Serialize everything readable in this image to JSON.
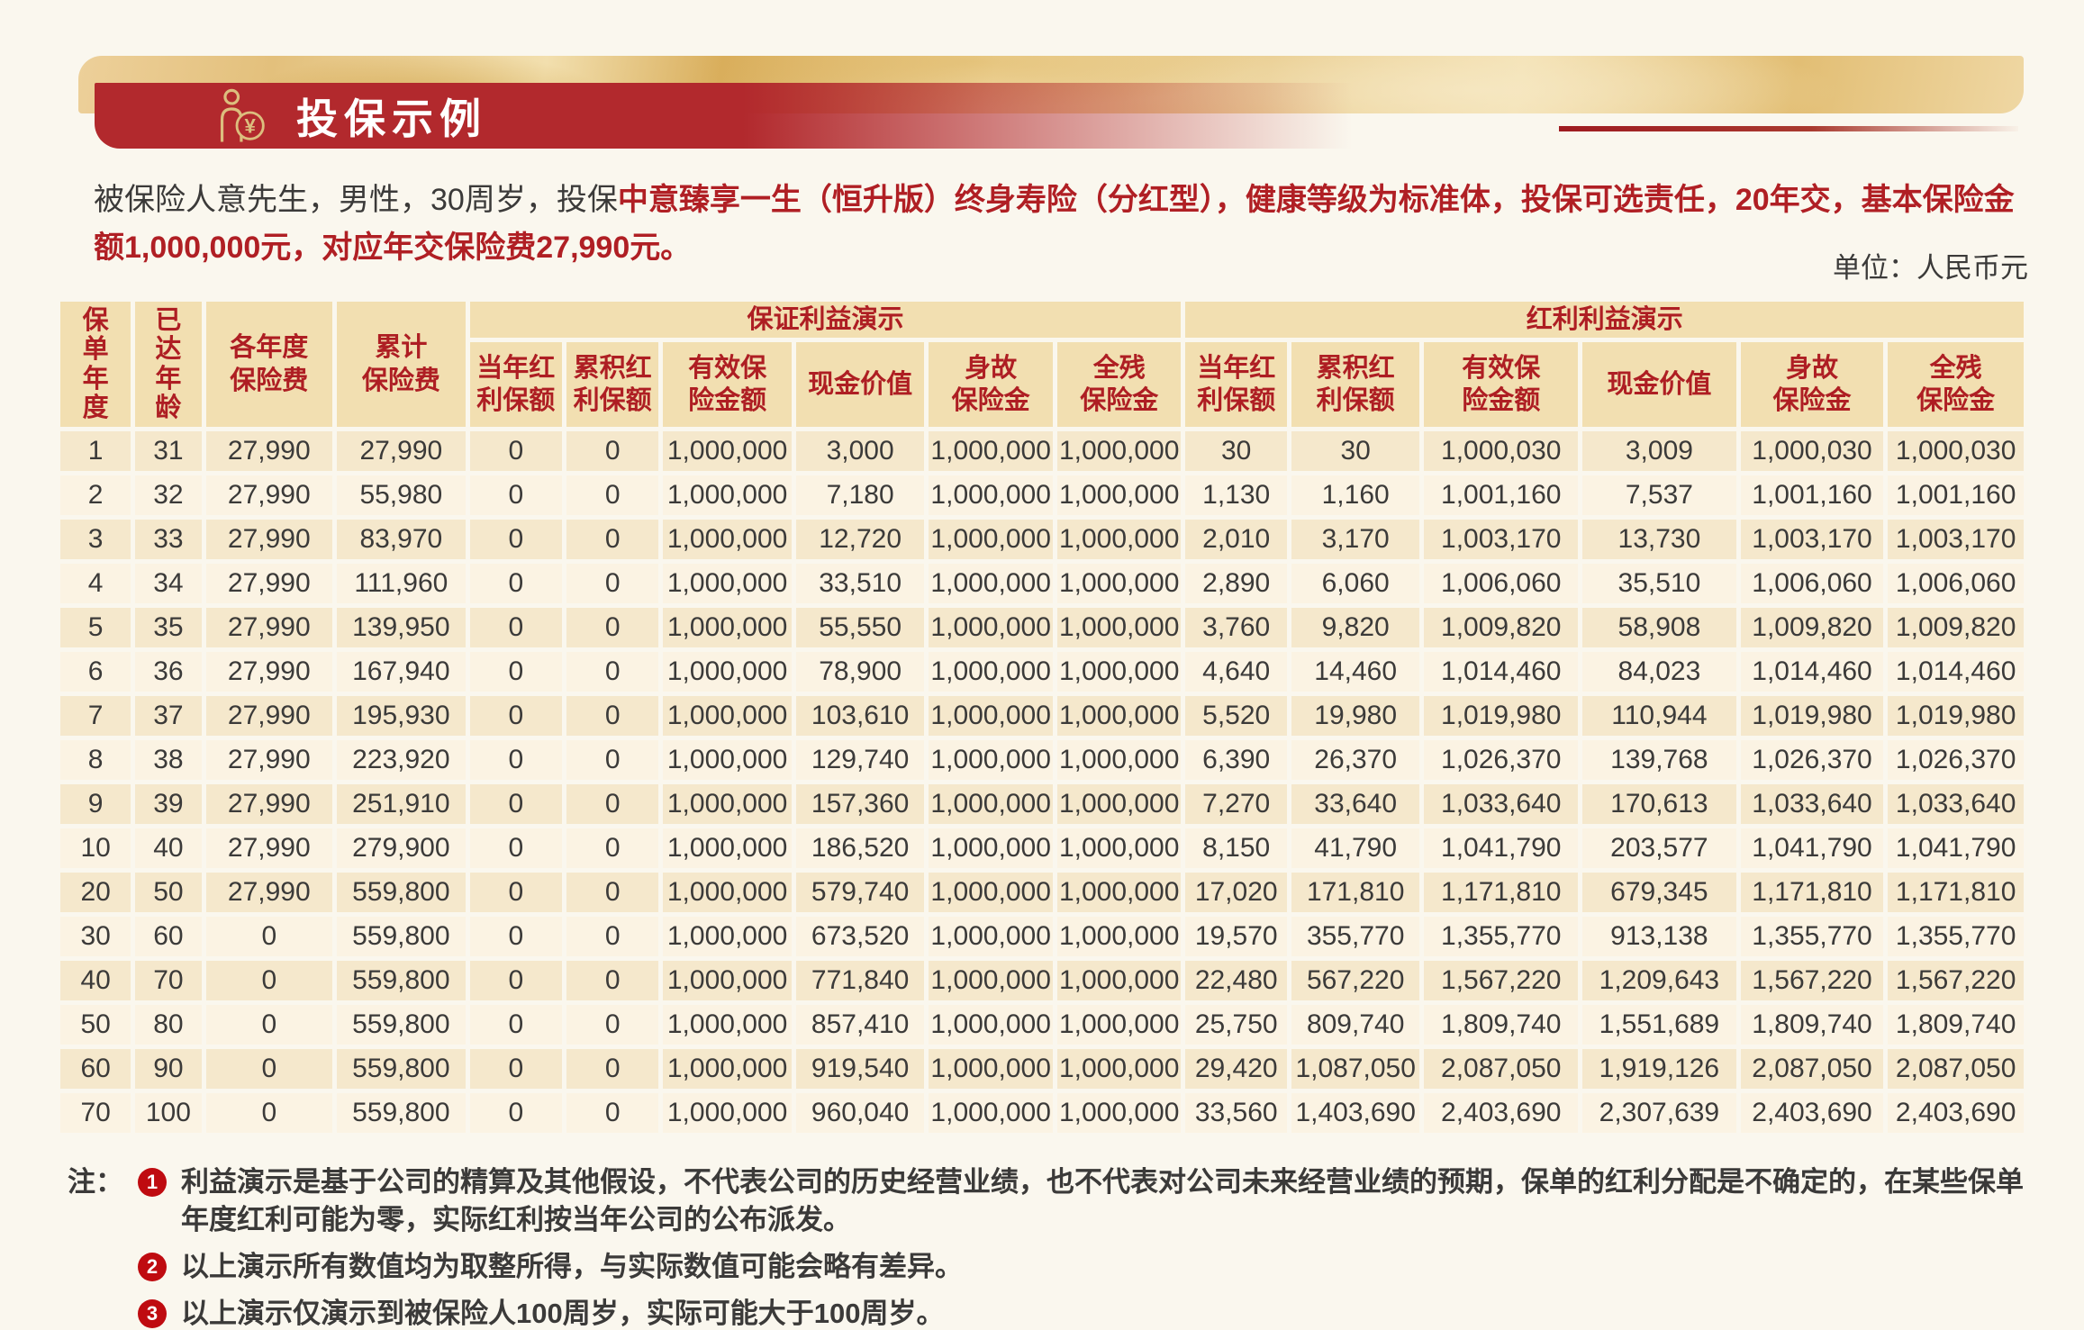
{
  "header": {
    "title": "投保示例"
  },
  "intro": {
    "normal": "被保险人意先生，男性，30周岁，投保",
    "highlight": "中意臻享一生（恒升版）终身寿险（分红型），健康等级为标准体，投保可选责任，20年交，基本保险金额1,000,000元，对应年交保险费27,990元。"
  },
  "unit_label": "单位：人民币元",
  "colors": {
    "accent_red": "#B01F24",
    "banner_red": "#B2292D",
    "header_cell": "#F2DFB1",
    "row_dark": "#F5E8CC",
    "row_light": "#FBF3E3",
    "note_badge": "#BF0B10",
    "gold": "#DCBE7E"
  },
  "icons": {
    "banner_icon": "person-yuan-icon",
    "coin_symbol": "¥"
  },
  "table": {
    "row_headers": [
      "保\n单\n年\n度",
      "已\n达\n年\n龄",
      "各年度\n保险费",
      "累计\n保险费"
    ],
    "groups": [
      "保证利益演示",
      "红利利益演示"
    ],
    "sub_headers": [
      "当年红\n利保额",
      "累积红\n利保额",
      "有效保\n险金额",
      "现金价值",
      "身故\n保险金",
      "全残\n保险金",
      "当年红\n利保额",
      "累积红\n利保额",
      "有效保\n险金额",
      "现金价值",
      "身故\n保险金",
      "全残\n保险金"
    ],
    "rows": [
      [
        "1",
        "31",
        "27,990",
        "27,990",
        "0",
        "0",
        "1,000,000",
        "3,000",
        "1,000,000",
        "1,000,000",
        "30",
        "30",
        "1,000,030",
        "3,009",
        "1,000,030",
        "1,000,030"
      ],
      [
        "2",
        "32",
        "27,990",
        "55,980",
        "0",
        "0",
        "1,000,000",
        "7,180",
        "1,000,000",
        "1,000,000",
        "1,130",
        "1,160",
        "1,001,160",
        "7,537",
        "1,001,160",
        "1,001,160"
      ],
      [
        "3",
        "33",
        "27,990",
        "83,970",
        "0",
        "0",
        "1,000,000",
        "12,720",
        "1,000,000",
        "1,000,000",
        "2,010",
        "3,170",
        "1,003,170",
        "13,730",
        "1,003,170",
        "1,003,170"
      ],
      [
        "4",
        "34",
        "27,990",
        "111,960",
        "0",
        "0",
        "1,000,000",
        "33,510",
        "1,000,000",
        "1,000,000",
        "2,890",
        "6,060",
        "1,006,060",
        "35,510",
        "1,006,060",
        "1,006,060"
      ],
      [
        "5",
        "35",
        "27,990",
        "139,950",
        "0",
        "0",
        "1,000,000",
        "55,550",
        "1,000,000",
        "1,000,000",
        "3,760",
        "9,820",
        "1,009,820",
        "58,908",
        "1,009,820",
        "1,009,820"
      ],
      [
        "6",
        "36",
        "27,990",
        "167,940",
        "0",
        "0",
        "1,000,000",
        "78,900",
        "1,000,000",
        "1,000,000",
        "4,640",
        "14,460",
        "1,014,460",
        "84,023",
        "1,014,460",
        "1,014,460"
      ],
      [
        "7",
        "37",
        "27,990",
        "195,930",
        "0",
        "0",
        "1,000,000",
        "103,610",
        "1,000,000",
        "1,000,000",
        "5,520",
        "19,980",
        "1,019,980",
        "110,944",
        "1,019,980",
        "1,019,980"
      ],
      [
        "8",
        "38",
        "27,990",
        "223,920",
        "0",
        "0",
        "1,000,000",
        "129,740",
        "1,000,000",
        "1,000,000",
        "6,390",
        "26,370",
        "1,026,370",
        "139,768",
        "1,026,370",
        "1,026,370"
      ],
      [
        "9",
        "39",
        "27,990",
        "251,910",
        "0",
        "0",
        "1,000,000",
        "157,360",
        "1,000,000",
        "1,000,000",
        "7,270",
        "33,640",
        "1,033,640",
        "170,613",
        "1,033,640",
        "1,033,640"
      ],
      [
        "10",
        "40",
        "27,990",
        "279,900",
        "0",
        "0",
        "1,000,000",
        "186,520",
        "1,000,000",
        "1,000,000",
        "8,150",
        "41,790",
        "1,041,790",
        "203,577",
        "1,041,790",
        "1,041,790"
      ],
      [
        "20",
        "50",
        "27,990",
        "559,800",
        "0",
        "0",
        "1,000,000",
        "579,740",
        "1,000,000",
        "1,000,000",
        "17,020",
        "171,810",
        "1,171,810",
        "679,345",
        "1,171,810",
        "1,171,810"
      ],
      [
        "30",
        "60",
        "0",
        "559,800",
        "0",
        "0",
        "1,000,000",
        "673,520",
        "1,000,000",
        "1,000,000",
        "19,570",
        "355,770",
        "1,355,770",
        "913,138",
        "1,355,770",
        "1,355,770"
      ],
      [
        "40",
        "70",
        "0",
        "559,800",
        "0",
        "0",
        "1,000,000",
        "771,840",
        "1,000,000",
        "1,000,000",
        "22,480",
        "567,220",
        "1,567,220",
        "1,209,643",
        "1,567,220",
        "1,567,220"
      ],
      [
        "50",
        "80",
        "0",
        "559,800",
        "0",
        "0",
        "1,000,000",
        "857,410",
        "1,000,000",
        "1,000,000",
        "25,750",
        "809,740",
        "1,809,740",
        "1,551,689",
        "1,809,740",
        "1,809,740"
      ],
      [
        "60",
        "90",
        "0",
        "559,800",
        "0",
        "0",
        "1,000,000",
        "919,540",
        "1,000,000",
        "1,000,000",
        "29,420",
        "1,087,050",
        "2,087,050",
        "1,919,126",
        "2,087,050",
        "2,087,050"
      ],
      [
        "70",
        "100",
        "0",
        "559,800",
        "0",
        "0",
        "1,000,000",
        "960,040",
        "1,000,000",
        "1,000,000",
        "33,560",
        "1,403,690",
        "2,403,690",
        "2,307,639",
        "2,403,690",
        "2,403,690"
      ]
    ]
  },
  "notes": {
    "label": "注：",
    "items": [
      {
        "num": "1",
        "text": "利益演示是基于公司的精算及其他假设，不代表公司的历史经营业绩，也不代表对公司未来经营业绩的预期，保单的红利分配是不确定的，在某些保单年度红利可能为零，实际红利按当年公司的公布派发。"
      },
      {
        "num": "2",
        "text": "以上演示所有数值均为取整所得，与实际数值可能会略有差异。"
      },
      {
        "num": "3",
        "text": "以上演示仅演示到被保险人100周岁，实际可能大于100周岁。"
      }
    ]
  }
}
